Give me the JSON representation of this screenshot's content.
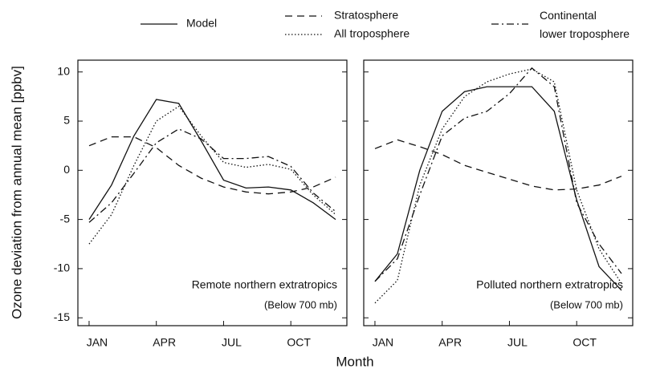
{
  "ylabel": "Ozone deviation from annual mean [ppbv]",
  "xlabel": "Month",
  "categories": [
    "JAN",
    null,
    null,
    "APR",
    null,
    null,
    "JUL",
    null,
    null,
    "OCT",
    null,
    null
  ],
  "ylim": [
    -15.8,
    11.2
  ],
  "yticks": [
    -15,
    -10,
    -5,
    0,
    5,
    10
  ],
  "chart_data": [
    {
      "type": "line",
      "annotation": "Remote northern extratropics",
      "note": "(Below 700 mb)",
      "series": [
        {
          "name": "Model",
          "color": "#111111",
          "dash": "solid",
          "values": [
            -5,
            -1.5,
            3.5,
            7.2,
            6.8,
            3,
            -1,
            -1.8,
            -1.7,
            -2,
            -3.3,
            -5
          ]
        },
        {
          "name": "Stratosphere",
          "color": "#111111",
          "dash": "dashed",
          "values": [
            2.5,
            3.4,
            3.4,
            2.3,
            0.5,
            -0.8,
            -1.7,
            -2.2,
            -2.4,
            -2.2,
            -1.7,
            -0.7
          ]
        },
        {
          "name": "All troposphere",
          "color": "#111111",
          "dash": "dotted",
          "values": [
            -7.5,
            -4.5,
            0.5,
            5,
            6.5,
            3.5,
            0.8,
            0.3,
            0.6,
            0.1,
            -2.5,
            -4.5
          ]
        },
        {
          "name": "Continental lower troposphere",
          "color": "#111111",
          "dash": "dashdot",
          "values": [
            -5.3,
            -3.3,
            -0.3,
            2.8,
            4.2,
            3.2,
            1.2,
            1.2,
            1.4,
            0.4,
            -2.3,
            -4.2
          ]
        }
      ]
    },
    {
      "type": "line",
      "annotation": "Polluted northern extratropics",
      "note": "(Below 700 mb)",
      "series": [
        {
          "color": "#111111",
          "dash": "solid",
          "values": [
            -11.3,
            -8.5,
            0,
            6,
            8,
            8.5,
            8.5,
            8.5,
            6,
            -3,
            -9.8,
            -12.2
          ]
        },
        {
          "color": "#111111",
          "dash": "dashed",
          "values": [
            2.2,
            3.1,
            2.4,
            1.6,
            0.5,
            -0.2,
            -0.9,
            -1.6,
            -2,
            -1.9,
            -1.5,
            -0.6
          ]
        },
        {
          "color": "#111111",
          "dash": "dotted",
          "values": [
            -13.5,
            -11.2,
            -1.5,
            4.2,
            7.5,
            9,
            9.8,
            10.3,
            9,
            -2,
            -8,
            -11.5
          ]
        },
        {
          "color": "#111111",
          "dash": "dashdot",
          "values": [
            -11.3,
            -9,
            -2.5,
            3.5,
            5.3,
            6,
            7.8,
            10.4,
            8.5,
            -3.3,
            -7.5,
            -10.5
          ]
        }
      ]
    }
  ]
}
